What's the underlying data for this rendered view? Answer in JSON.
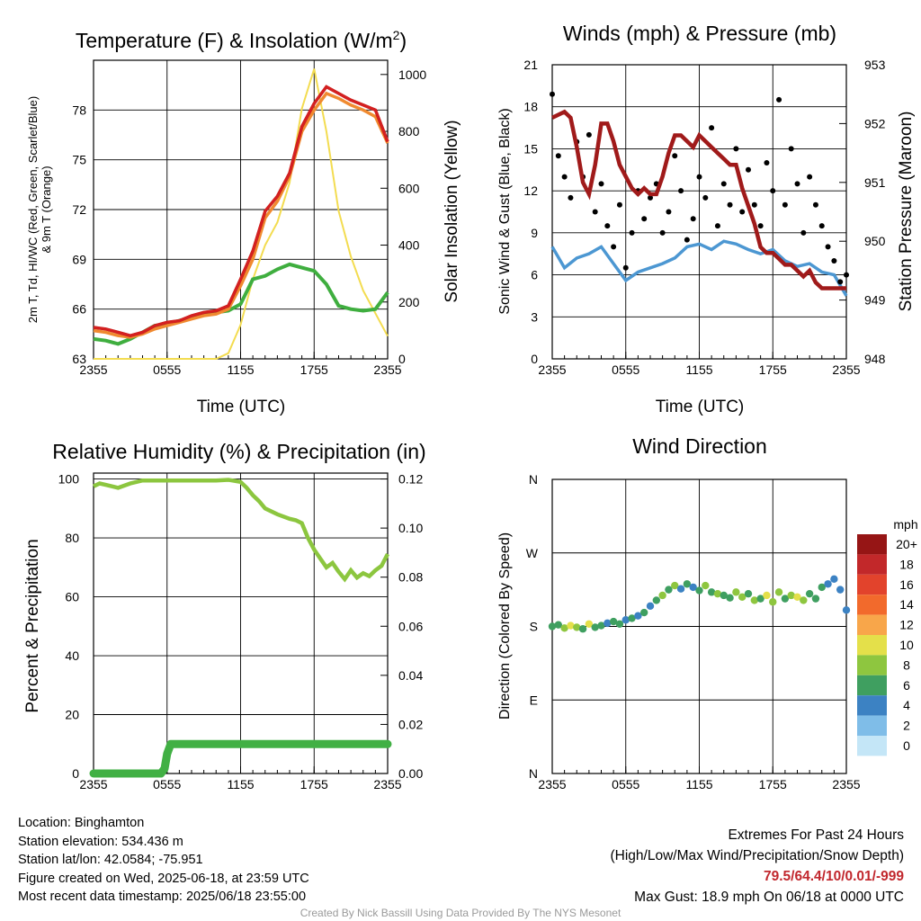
{
  "time_ticks": [
    "2355",
    "0555",
    "1155",
    "1755",
    "2355"
  ],
  "colors": {
    "air_temp": "#d42020",
    "dewpoint": "#3fae3f",
    "heat_index": "#c01515",
    "temp_9m": "#f08a30",
    "insolation": "#f3dc50",
    "sonic_wind": "#4c97d2",
    "gust": "#000000",
    "pressure": "#a01a1a",
    "rh": "#8cc63f",
    "precip": "#41b044"
  },
  "wind_colorbar": {
    "unit": "mph",
    "labels": [
      "20+",
      "18",
      "16",
      "14",
      "12",
      "10",
      "8",
      "6",
      "4",
      "2",
      "0"
    ],
    "colors": [
      "#961515",
      "#c2282a",
      "#e2432c",
      "#f26a2c",
      "#f8a64a",
      "#e4e04a",
      "#8ec63f",
      "#3f9f60",
      "#3c82c3",
      "#7fbde8",
      "#c4e6f7"
    ]
  },
  "chart_data": [
    {
      "type": "line",
      "title": "Temperature (F) & Insolation (W/m²)",
      "xlabel": "Time (UTC)",
      "ylabel_left": "2m T, Td, HI/WC (Red, Green, Scarlet/Blue) & 9m T (Orange)",
      "ylabel_right": "Solar Insolation (Yellow)",
      "x_ticks": [
        "2355",
        "0555",
        "1155",
        "1755",
        "2355"
      ],
      "x_hours": [
        0,
        6,
        12,
        18,
        24
      ],
      "ylim": [
        63,
        81
      ],
      "y_ticks": [
        63,
        66,
        69,
        72,
        75,
        78
      ],
      "y2lim": [
        0,
        1050
      ],
      "y2_ticks": [
        0,
        200,
        400,
        600,
        800,
        1000
      ],
      "grid": true,
      "series": [
        {
          "x": [
            0,
            1,
            2,
            3,
            4,
            5,
            6,
            7,
            8,
            9,
            10,
            11,
            12,
            13,
            14,
            15,
            16,
            17,
            18,
            19,
            20,
            21,
            22,
            23,
            24
          ],
          "y": [
            64.9,
            64.8,
            64.6,
            64.4,
            64.6,
            65.0,
            65.2,
            65.3,
            65.6,
            65.8,
            65.9,
            66.2,
            67.8,
            69.5,
            71.9,
            72.8,
            74.2,
            77.0,
            78.4,
            79.4,
            79.0,
            78.6,
            78.3,
            78.0,
            76.1
          ]
        },
        {
          "x": [
            0,
            1,
            2,
            3,
            4,
            5,
            6,
            7,
            8,
            9,
            10,
            11,
            12,
            13,
            14,
            15,
            16,
            17,
            18,
            19,
            20,
            21,
            22,
            23,
            24
          ],
          "y": [
            64.9,
            64.8,
            64.6,
            64.4,
            64.6,
            65.0,
            65.2,
            65.3,
            65.6,
            65.8,
            65.9,
            66.2,
            67.8,
            69.5,
            71.9,
            72.8,
            74.2,
            77.0,
            78.4,
            79.4,
            79.0,
            78.6,
            78.3,
            78.0,
            76.1
          ]
        },
        {
          "x": [
            0,
            1,
            2,
            3,
            4,
            5,
            6,
            7,
            8,
            9,
            10,
            11,
            12,
            13,
            14,
            15,
            16,
            17,
            18,
            19,
            20,
            21,
            22,
            23,
            24
          ],
          "y": [
            64.7,
            64.6,
            64.4,
            64.3,
            64.5,
            64.8,
            65.0,
            65.2,
            65.4,
            65.6,
            65.7,
            66.0,
            67.4,
            69.0,
            71.5,
            72.5,
            74.0,
            76.7,
            78.0,
            79.0,
            78.7,
            78.3,
            78.0,
            77.6,
            76.0
          ]
        },
        {
          "x": [
            0,
            1,
            2,
            3,
            4,
            5,
            6,
            7,
            8,
            9,
            10,
            11,
            12,
            13,
            14,
            15,
            16,
            17,
            18,
            19,
            20,
            21,
            22,
            23,
            24
          ],
          "y": [
            64.2,
            64.1,
            63.9,
            64.2,
            64.6,
            65.0,
            65.1,
            65.3,
            65.5,
            65.7,
            65.8,
            65.9,
            66.3,
            67.8,
            68.0,
            68.4,
            68.7,
            68.5,
            68.3,
            67.5,
            66.2,
            66.0,
            65.9,
            66.0,
            67.0
          ]
        },
        {
          "x": [
            0,
            1,
            2,
            3,
            4,
            5,
            6,
            7,
            8,
            9,
            10,
            11,
            12,
            13,
            14,
            15,
            16,
            17,
            18,
            19,
            20,
            21,
            22,
            23,
            24
          ],
          "y": [
            0,
            0,
            0,
            0,
            0,
            0,
            0,
            0,
            0,
            0,
            0,
            20,
            120,
            280,
            400,
            480,
            620,
            880,
            1020,
            800,
            520,
            360,
            240,
            160,
            80
          ]
        }
      ]
    },
    {
      "type": "line",
      "title": "Winds (mph) & Pressure (mb)",
      "xlabel": "Time (UTC)",
      "ylabel_left": "Sonic Wind & Gust (Blue, Black)",
      "ylabel_right": "Station Pressure (Maroon)",
      "x_ticks": [
        "2355",
        "0555",
        "1155",
        "1755",
        "2355"
      ],
      "x_hours": [
        0,
        6,
        12,
        18,
        24
      ],
      "ylim": [
        0,
        21
      ],
      "y_ticks": [
        0,
        3,
        6,
        9,
        12,
        15,
        18,
        21
      ],
      "y2lim": [
        948,
        953
      ],
      "y2_ticks": [
        948,
        949,
        950,
        951,
        952,
        953
      ],
      "grid": true,
      "series": [
        {
          "x": [
            0,
            1,
            2,
            3,
            4,
            5,
            6,
            7,
            8,
            9,
            10,
            11,
            12,
            13,
            14,
            15,
            16,
            17,
            18,
            19,
            20,
            21,
            22,
            23,
            24
          ],
          "y": [
            8.0,
            6.5,
            7.2,
            7.5,
            8.0,
            6.8,
            5.6,
            6.2,
            6.5,
            6.8,
            7.2,
            8.0,
            8.2,
            7.8,
            8.4,
            8.2,
            7.8,
            7.5,
            7.8,
            7.0,
            6.6,
            6.8,
            6.2,
            6.0,
            4.5
          ]
        },
        {
          "x": [
            0,
            0.5,
            1,
            1.5,
            2,
            2.5,
            3,
            3.5,
            4,
            4.5,
            5,
            5.5,
            6,
            6.5,
            7,
            7.5,
            8,
            8.5,
            9,
            9.5,
            10,
            10.5,
            11,
            11.5,
            12,
            12.5,
            13,
            13.5,
            14,
            14.5,
            15,
            15.5,
            16,
            16.5,
            17,
            17.5,
            18,
            18.5,
            19,
            19.5,
            20,
            20.5,
            21,
            21.5,
            22,
            22.5,
            23,
            23.5,
            24
          ],
          "y": [
            18.9,
            14.5,
            13.0,
            11.5,
            15.5,
            13.0,
            16.0,
            10.5,
            12.5,
            9.5,
            8.0,
            11.0,
            6.5,
            9.0,
            12.0,
            10.0,
            11.5,
            12.5,
            9.0,
            10.5,
            14.5,
            12.0,
            8.5,
            10.0,
            13.0,
            11.5,
            16.5,
            9.5,
            12.5,
            11.0,
            15.0,
            10.5,
            13.5,
            11.0,
            9.5,
            14.0,
            12.0,
            18.5,
            11.0,
            15.0,
            12.5,
            9.0,
            13.0,
            11.0,
            9.5,
            8.0,
            7.0,
            5.5,
            6.0
          ]
        },
        {
          "x": [
            0,
            1,
            1.5,
            2,
            2.5,
            3,
            3.5,
            4,
            4.5,
            5,
            5.5,
            6,
            6.5,
            7,
            7.5,
            8,
            8.5,
            9,
            9.5,
            10,
            10.5,
            11,
            11.5,
            12,
            12.5,
            13,
            13.5,
            14,
            14.5,
            15,
            15.5,
            16,
            16.5,
            17,
            17.5,
            18,
            18.5,
            19,
            19.5,
            20,
            20.5,
            21,
            21.5,
            22,
            23,
            24
          ],
          "y": [
            952.1,
            952.2,
            952.1,
            951.6,
            951.0,
            950.8,
            951.3,
            952.0,
            952.0,
            951.7,
            951.3,
            951.1,
            950.9,
            950.8,
            950.9,
            950.8,
            950.8,
            951.1,
            951.5,
            951.8,
            951.8,
            951.7,
            951.6,
            951.8,
            951.7,
            951.6,
            951.5,
            951.4,
            951.3,
            951.3,
            950.9,
            950.6,
            950.3,
            949.9,
            949.8,
            949.8,
            949.7,
            949.6,
            949.6,
            949.5,
            949.4,
            949.5,
            949.3,
            949.2,
            949.2,
            949.2
          ]
        }
      ]
    },
    {
      "type": "line",
      "title": "Relative Humidity (%) & Precipitation (in)",
      "ylabel_left": "Percent & Precipitation",
      "x_ticks": [
        "2355",
        "0555",
        "1155",
        "1755",
        "2355"
      ],
      "x_hours": [
        0,
        6,
        12,
        18,
        24
      ],
      "ylim": [
        0,
        102
      ],
      "y_ticks": [
        0,
        20,
        40,
        60,
        80,
        100
      ],
      "y2lim": [
        0,
        0.1224
      ],
      "y2_ticks": [
        "0.00",
        "0.02",
        "0.04",
        "0.06",
        "0.08",
        "0.10",
        "0.12"
      ],
      "grid": true,
      "series": [
        {
          "x": [
            0,
            0.5,
            1,
            2,
            3,
            4,
            5,
            6,
            8,
            10,
            11,
            12,
            12.5,
            13,
            13.5,
            14,
            15,
            16,
            16.5,
            17,
            17.5,
            18,
            18.5,
            19,
            19.5,
            20,
            20.5,
            21,
            21.5,
            22,
            22.5,
            23,
            23.5,
            24
          ],
          "y": [
            97.5,
            98.5,
            98.0,
            97.0,
            98.5,
            99.5,
            99.5,
            99.5,
            99.5,
            99.5,
            99.7,
            99.0,
            97.0,
            94.5,
            92.5,
            90.0,
            88.0,
            86.5,
            86.0,
            85.0,
            80.0,
            76.0,
            73.0,
            70.0,
            71.5,
            68.5,
            66.0,
            69.0,
            66.5,
            68.0,
            67.0,
            69.0,
            70.5,
            74.5
          ]
        },
        {
          "x": [
            0,
            5.5,
            5.8,
            6.0,
            6.3,
            24
          ],
          "y": [
            0,
            0,
            0.002,
            0.008,
            0.012,
            0.012
          ]
        }
      ]
    },
    {
      "type": "scatter",
      "title": "Wind Direction",
      "ylabel_left": "Direction (Colored By Speed)",
      "x_ticks": [
        "2355",
        "0555",
        "1155",
        "1755",
        "2355"
      ],
      "x_hours": [
        0,
        6,
        12,
        18,
        24
      ],
      "y_tick_labels": [
        "N",
        "E",
        "S",
        "W",
        "N"
      ],
      "ylim": [
        0,
        360
      ],
      "grid": true,
      "legend": "right",
      "x": [
        0,
        0.5,
        1,
        1.5,
        2,
        2.5,
        3,
        3.5,
        4,
        4.5,
        5,
        5.5,
        6,
        6.5,
        7,
        7.5,
        8,
        8.5,
        9,
        9.5,
        10,
        10.5,
        11,
        11.5,
        12,
        12.5,
        13,
        13.5,
        14,
        14.5,
        15,
        15.5,
        16,
        16.5,
        17,
        17.5,
        18,
        18.5,
        19,
        19.5,
        20,
        20.5,
        21,
        21.5,
        22,
        22.5,
        23,
        23.5,
        24
      ],
      "y": [
        180,
        182,
        178,
        181,
        179,
        177,
        183,
        179,
        181,
        184,
        186,
        183,
        188,
        190,
        193,
        197,
        205,
        212,
        218,
        225,
        230,
        226,
        232,
        228,
        224,
        230,
        222,
        220,
        218,
        215,
        222,
        216,
        220,
        212,
        214,
        218,
        210,
        222,
        214,
        218,
        216,
        212,
        220,
        214,
        228,
        232,
        238,
        225,
        200
      ],
      "speed": [
        5,
        6,
        7,
        9,
        8,
        6,
        9,
        6,
        5,
        4,
        5,
        6,
        4,
        5,
        4,
        6,
        4,
        5,
        7,
        6,
        7,
        4,
        6,
        4,
        5,
        7,
        6,
        8,
        6,
        5,
        7,
        8,
        6,
        7,
        5,
        9,
        8,
        7,
        6,
        8,
        9,
        7,
        5,
        6,
        5,
        4,
        3,
        4,
        3
      ]
    }
  ],
  "info": {
    "location": "Location: Binghamton",
    "elevation": "Station elevation: 534.436 m",
    "latlon": "Station lat/lon: 42.0584; -75.951",
    "created": "Figure created on Wed, 2025-06-18, at 23:59 UTC",
    "recent": "Most recent data timestamp: 2025/06/18 23:55:00"
  },
  "extremes": {
    "title": "Extremes For Past 24 Hours",
    "subtitle": "(High/Low/Max Wind/Precipitation/Snow Depth)",
    "values": "79.5/64.4/10/0.01/-999",
    "gust": "Max Gust: 18.9 mph On 06/18 at 0000 UTC"
  },
  "credit": "Created By Nick Bassill Using Data Provided By The NYS Mesonet"
}
